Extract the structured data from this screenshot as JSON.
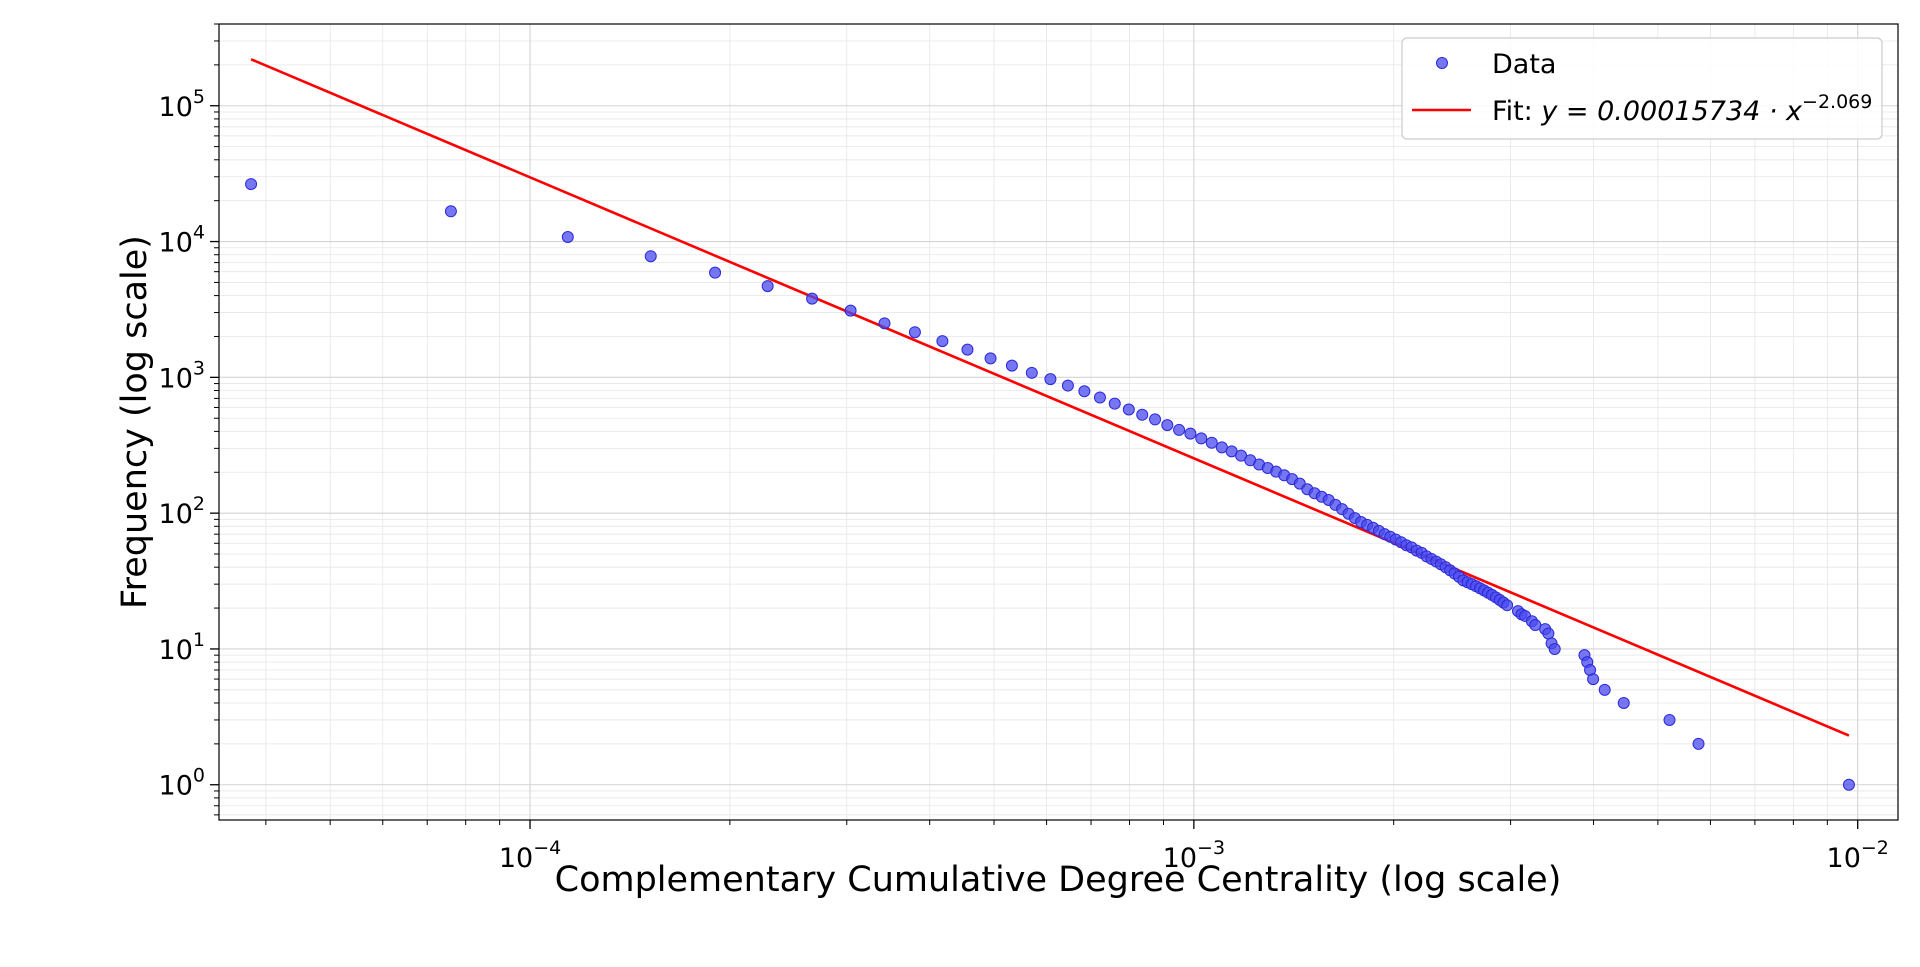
{
  "chart_data": {
    "type": "scatter",
    "title": "",
    "xlabel": "Complementary Cumulative Degree Centrality (log scale)",
    "ylabel": "Frequency (log scale)",
    "xscale": "log",
    "yscale": "log",
    "xlim": [
      3.4e-05,
      0.0115
    ],
    "ylim": [
      0.55,
      400000
    ],
    "grid": true,
    "legend_position": "top-right",
    "x_ticks": [
      {
        "value": 0.0001,
        "base": "10",
        "exp": "−4"
      },
      {
        "value": 0.001,
        "base": "10",
        "exp": "−3"
      },
      {
        "value": 0.01,
        "base": "10",
        "exp": "−2"
      }
    ],
    "y_ticks": [
      {
        "value": 1,
        "base": "10",
        "exp": "0"
      },
      {
        "value": 10,
        "base": "10",
        "exp": "1"
      },
      {
        "value": 100,
        "base": "10",
        "exp": "2"
      },
      {
        "value": 1000,
        "base": "10",
        "exp": "3"
      },
      {
        "value": 10000,
        "base": "10",
        "exp": "4"
      },
      {
        "value": 100000,
        "base": "10",
        "exp": "5"
      }
    ],
    "series": [
      {
        "name": "Data",
        "kind": "scatter",
        "color": "#4a4af0",
        "points": [
          [
            3.8e-05,
            26500
          ],
          [
            7.6e-05,
            16700
          ],
          [
            0.000114,
            10800
          ],
          [
            0.000152,
            7800
          ],
          [
            0.00019,
            5900
          ],
          [
            0.000228,
            4700
          ],
          [
            0.000266,
            3800
          ],
          [
            0.000304,
            3100
          ],
          [
            0.000342,
            2500
          ],
          [
            0.00038,
            2150
          ],
          [
            0.000418,
            1850
          ],
          [
            0.000456,
            1600
          ],
          [
            0.000494,
            1380
          ],
          [
            0.000532,
            1220
          ],
          [
            0.00057,
            1080
          ],
          [
            0.000608,
            970
          ],
          [
            0.000646,
            870
          ],
          [
            0.000684,
            790
          ],
          [
            0.000722,
            710
          ],
          [
            0.00076,
            640
          ],
          [
            0.000798,
            580
          ],
          [
            0.000836,
            530
          ],
          [
            0.000874,
            490
          ],
          [
            0.000912,
            445
          ],
          [
            0.00095,
            410
          ],
          [
            0.000988,
            385
          ],
          [
            0.001026,
            355
          ],
          [
            0.001064,
            330
          ],
          [
            0.001102,
            305
          ],
          [
            0.00114,
            285
          ],
          [
            0.001178,
            265
          ],
          [
            0.001216,
            245
          ],
          [
            0.001254,
            228
          ],
          [
            0.001292,
            215
          ],
          [
            0.00133,
            202
          ],
          [
            0.001368,
            190
          ],
          [
            0.001406,
            178
          ],
          [
            0.001444,
            165
          ],
          [
            0.001482,
            150
          ],
          [
            0.00152,
            140
          ],
          [
            0.001558,
            132
          ],
          [
            0.001596,
            125
          ],
          [
            0.001634,
            115
          ],
          [
            0.001672,
            107
          ],
          [
            0.00171,
            99
          ],
          [
            0.001748,
            92
          ],
          [
            0.001786,
            86
          ],
          [
            0.001824,
            82
          ],
          [
            0.001862,
            78
          ],
          [
            0.0019,
            74
          ],
          [
            0.001938,
            70
          ],
          [
            0.001976,
            67
          ],
          [
            0.002014,
            64
          ],
          [
            0.002052,
            61
          ],
          [
            0.00209,
            58
          ],
          [
            0.002128,
            56
          ],
          [
            0.002166,
            53
          ],
          [
            0.002204,
            51
          ],
          [
            0.002242,
            48
          ],
          [
            0.00228,
            46
          ],
          [
            0.002318,
            44
          ],
          [
            0.002356,
            42
          ],
          [
            0.002394,
            40
          ],
          [
            0.002432,
            38
          ],
          [
            0.00247,
            36
          ],
          [
            0.002508,
            34
          ],
          [
            0.002546,
            32
          ],
          [
            0.002584,
            31
          ],
          [
            0.002622,
            30
          ],
          [
            0.00266,
            29
          ],
          [
            0.002698,
            28
          ],
          [
            0.002736,
            27
          ],
          [
            0.002774,
            26
          ],
          [
            0.002812,
            25
          ],
          [
            0.00285,
            24
          ],
          [
            0.002888,
            23
          ],
          [
            0.002926,
            22
          ],
          [
            0.002964,
            21
          ],
          [
            0.003078,
            19
          ],
          [
            0.003116,
            18
          ],
          [
            0.003154,
            17.5
          ],
          [
            0.00323,
            16
          ],
          [
            0.003268,
            15
          ],
          [
            0.003382,
            14
          ],
          [
            0.00342,
            13
          ],
          [
            0.003458,
            11
          ],
          [
            0.003496,
            10
          ],
          [
            0.003876,
            9
          ],
          [
            0.003914,
            8
          ],
          [
            0.003952,
            7
          ],
          [
            0.003994,
            6
          ],
          [
            0.004158,
            5
          ],
          [
            0.004442,
            4
          ],
          [
            0.005206,
            3
          ],
          [
            0.005757,
            2
          ],
          [
            0.0097,
            1
          ]
        ]
      },
      {
        "name_prefix": "Fit: ",
        "name_math": "y = 0.00015734 · x",
        "name_exp": "−2.069",
        "kind": "line",
        "color": "#ff0000",
        "coef": 0.00015734,
        "exponent": -2.069,
        "x_range": [
          3.8e-05,
          0.0097
        ]
      }
    ]
  }
}
